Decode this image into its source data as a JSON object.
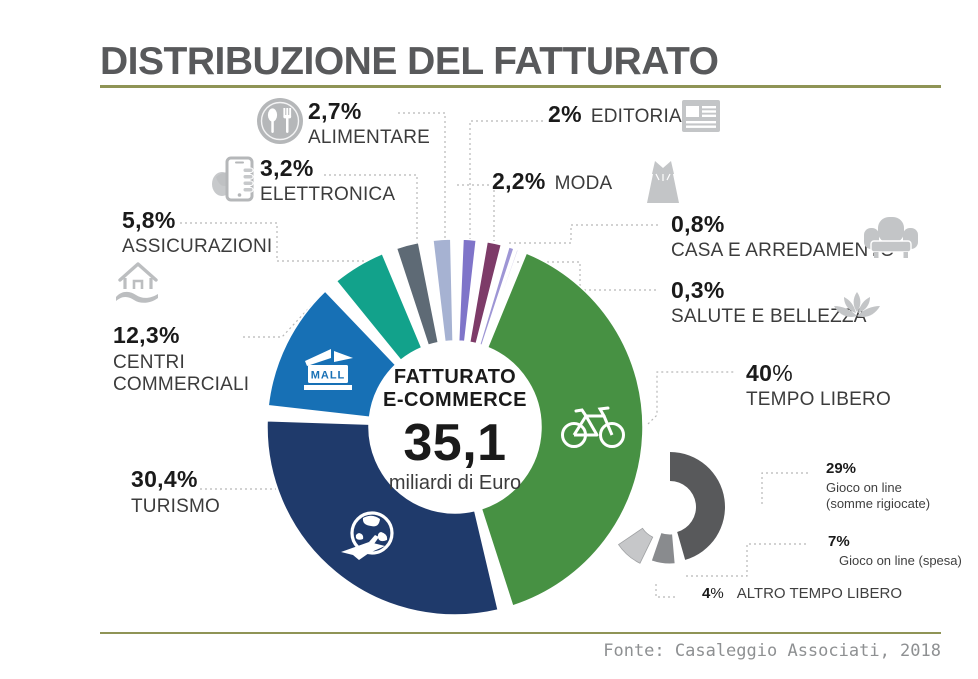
{
  "page": {
    "title": "DISTRIBUZIONE DEL FATTURATO",
    "source": "Fonte: Casaleggio Associati, 2018"
  },
  "chart_data": {
    "type": "pie",
    "variant": "donut",
    "title": "DISTRIBUZIONE DEL FATTURATO",
    "source": "Fonte: Casaleggio Associati, 2018",
    "center": {
      "line1": "FATTURATO",
      "line2": "E-COMMERCE",
      "value": "35,1",
      "unit": "miliardi di Euro"
    },
    "legend_position": "around",
    "segments": [
      {
        "label": "TEMPO LIBERO",
        "label_lines": [
          "TEMPO LIBERO"
        ],
        "pct_label": "40%",
        "pct_num": "40",
        "pct_sign": "%",
        "value": 40,
        "color": "#479143",
        "icon": "bicycle-icon"
      },
      {
        "label": "TURISMO",
        "label_lines": [
          "TURISMO"
        ],
        "pct_label": "30,4%",
        "value": 30.4,
        "color": "#1f3a6b",
        "icon": "globe-plane-icon"
      },
      {
        "label": "CENTRI COMMERCIALI",
        "label_lines": [
          "CENTRI",
          "COMMERCIALI"
        ],
        "pct_label": "12,3%",
        "value": 12.3,
        "color": "#1770b5",
        "icon": "mall-icon",
        "icon_text": "MALL"
      },
      {
        "label": "ASSICURAZIONI",
        "label_lines": [
          "ASSICURAZIONI"
        ],
        "pct_label": "5,8%",
        "value": 5.8,
        "color": "#12a28b",
        "icon": "house-hand-icon"
      },
      {
        "label": "ELETTRONICA",
        "label_lines": [
          "ELETTRONICA"
        ],
        "pct_label": "3,2%",
        "value": 3.2,
        "color": "#5e6a75",
        "icon": "phone-hand-icon"
      },
      {
        "label": "ALIMENTARE",
        "label_lines": [
          "ALIMENTARE"
        ],
        "pct_label": "2,7%",
        "value": 2.7,
        "color": "#a6b2d2",
        "icon": "cutlery-icon"
      },
      {
        "label": "EDITORIA",
        "label_lines": [
          "EDITORIA"
        ],
        "pct_label": "2%",
        "value": 2,
        "color": "#7f74c9",
        "icon": "newspaper-icon"
      },
      {
        "label": "MODA",
        "label_lines": [
          "MODA"
        ],
        "pct_label": "2,2%",
        "value": 2.2,
        "color": "#7d3b68",
        "icon": "dress-icon"
      },
      {
        "label": "CASA E ARREDAMENTO",
        "label_lines": [
          "CASA E ARREDAMENTO"
        ],
        "pct_label": "0,8%",
        "value": 0.8,
        "color": "#9e96d5",
        "icon": "armchair-icon"
      },
      {
        "label": "SALUTE E BELLEZZA",
        "label_lines": [
          "SALUTE E BELLEZZA"
        ],
        "pct_label": "0,3%",
        "value": 0.3,
        "color": "#d4d0ea",
        "icon": "lotus-icon"
      }
    ],
    "sub_chart": {
      "parent": "TEMPO LIBERO",
      "type": "pie",
      "segments": [
        {
          "label": "Gioco on line (somme rigiocate)",
          "label_lines": [
            "Gioco on line",
            "(somme rigiocate)"
          ],
          "pct_label": "29%",
          "value": 29,
          "color": "#58595b"
        },
        {
          "label": "Gioco on line (spesa)",
          "label_lines": [
            "Gioco on line (spesa)"
          ],
          "pct_label": "7%",
          "value": 7,
          "color": "#898b8e"
        },
        {
          "label": "ALTRO TEMPO LIBERO",
          "label_lines": [
            "ALTRO TEMPO LIBERO"
          ],
          "pct_label": "4%",
          "pct_num": "4",
          "pct_sign": "%",
          "value": 4,
          "color": "#c6c7c9"
        }
      ]
    }
  }
}
